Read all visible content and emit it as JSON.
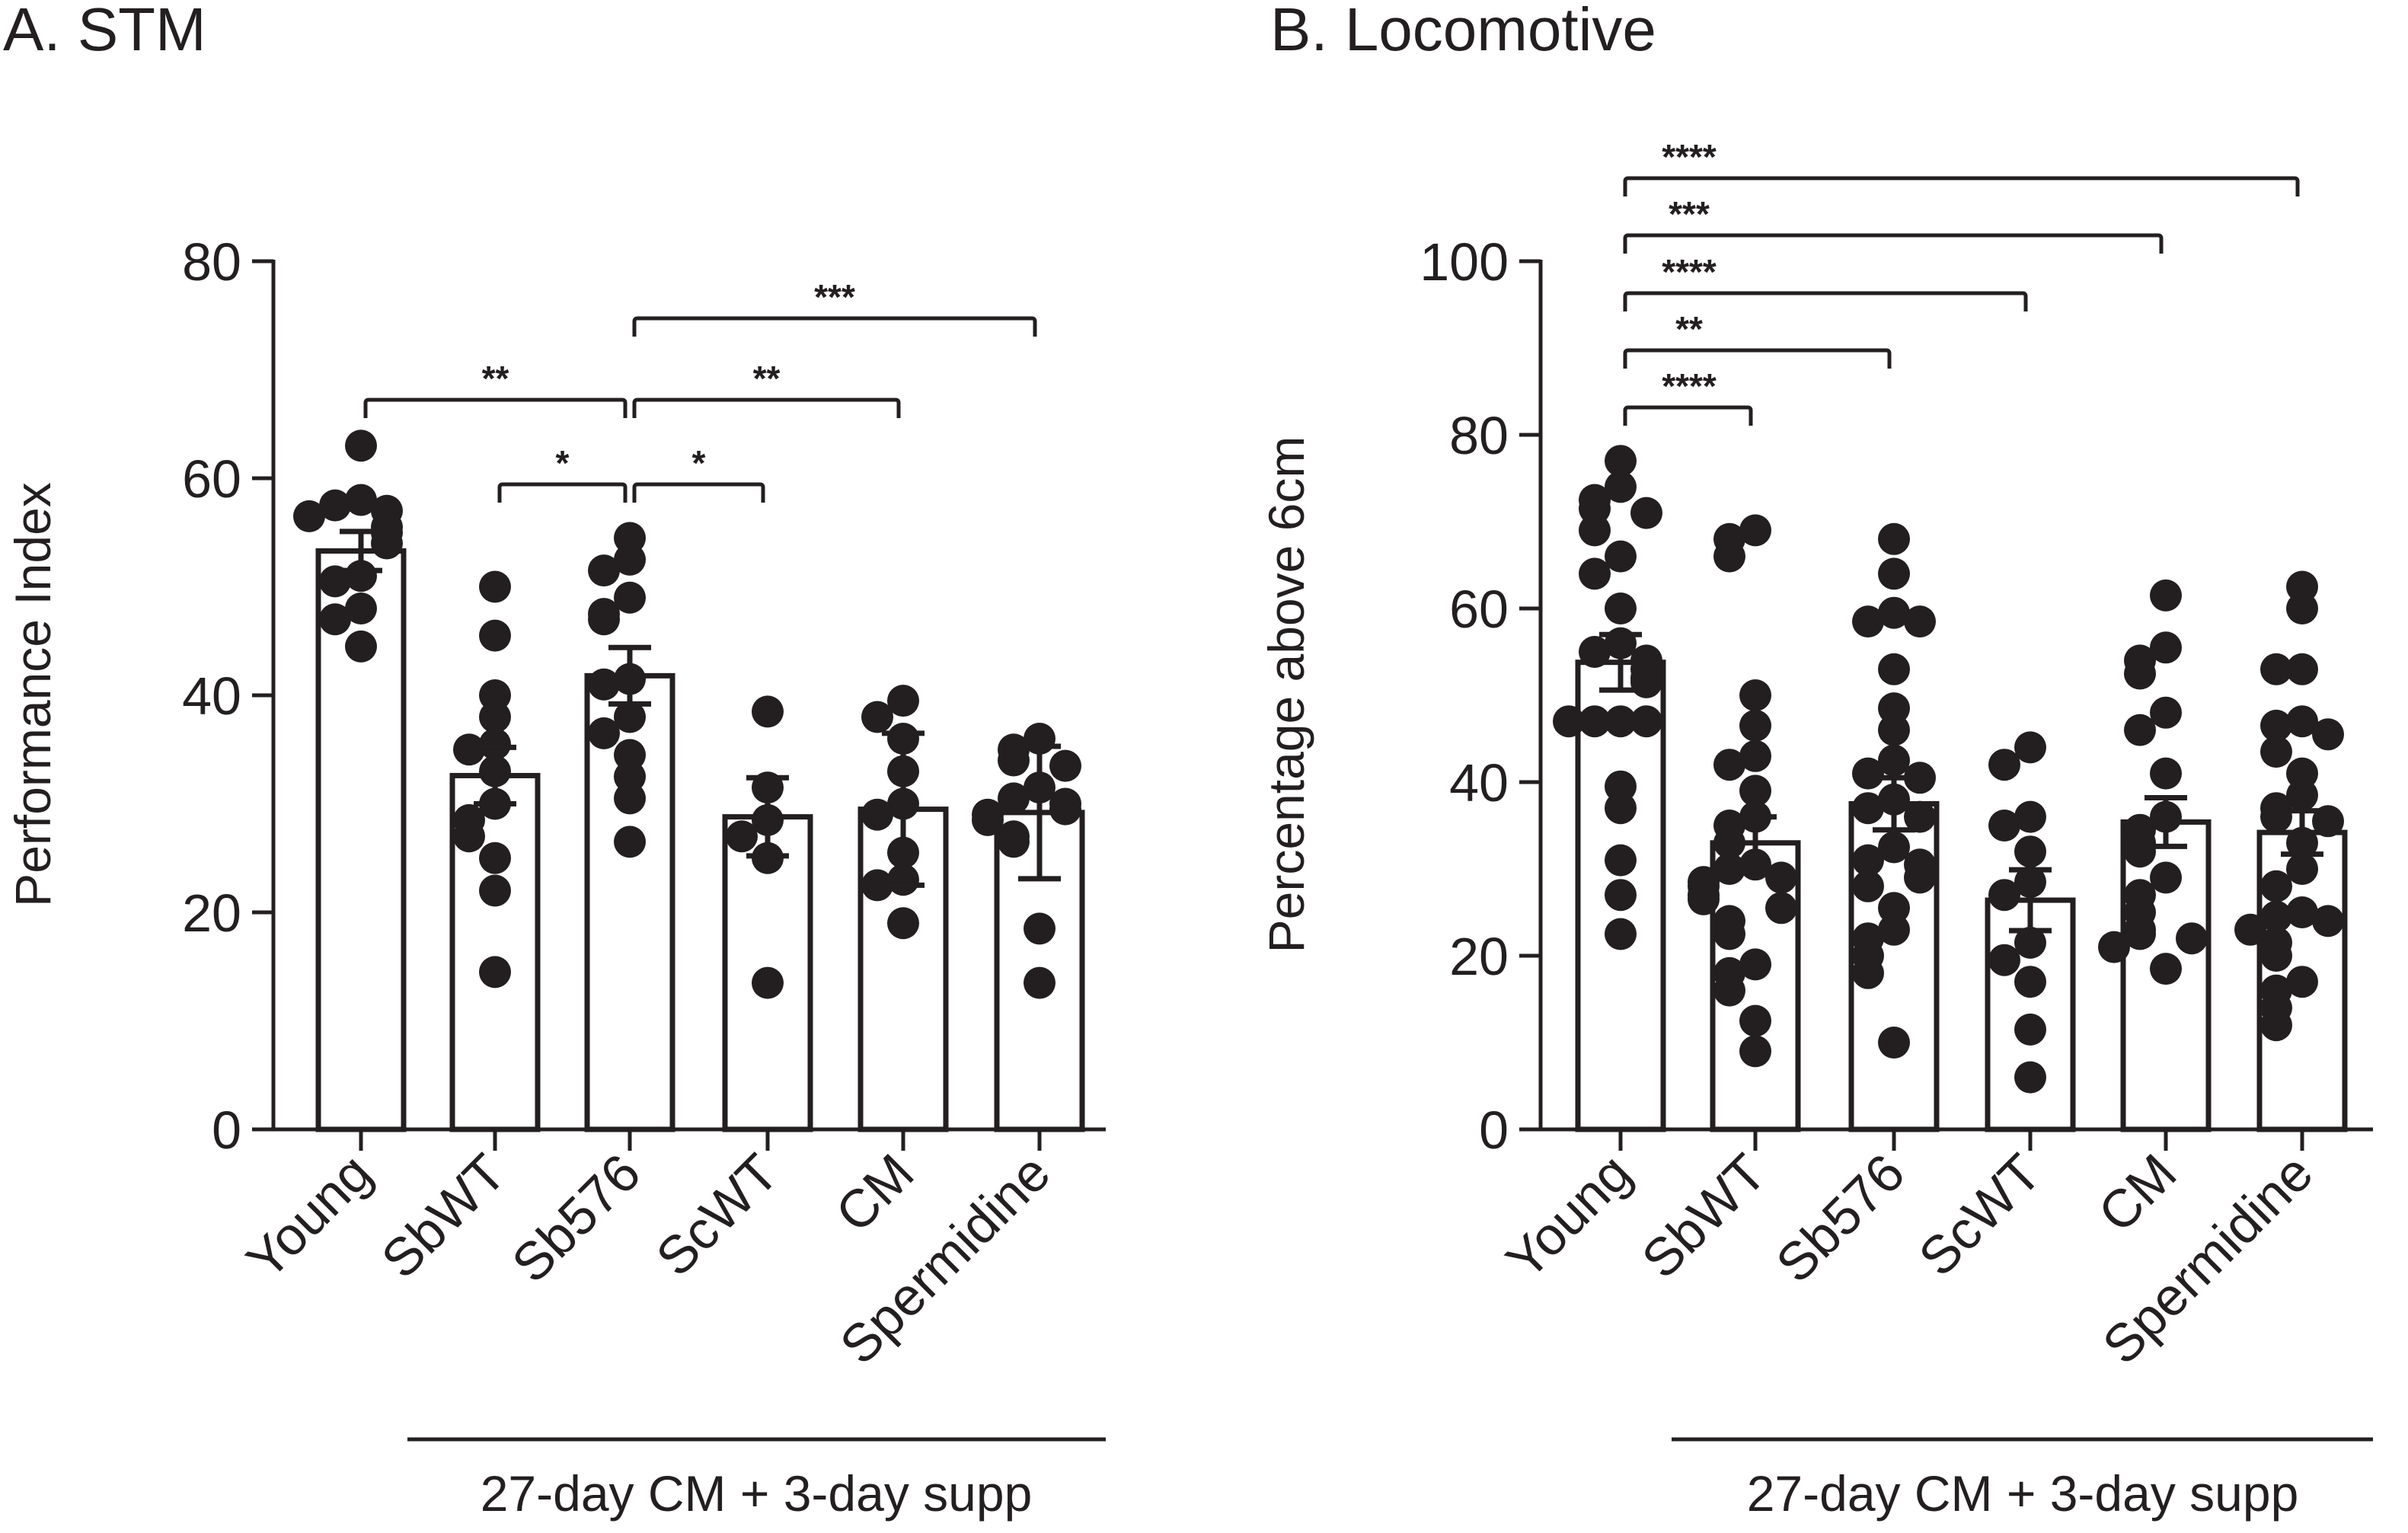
{
  "chart_data": [
    {
      "type": "bar",
      "title": "A. STM",
      "xlabel": "",
      "ylabel": "Performance Index",
      "ylim": [
        0,
        80
      ],
      "yticks": [
        0,
        20,
        40,
        60,
        80
      ],
      "categories": [
        "Young",
        "SbWT",
        "Sb576",
        "ScWT",
        "CM",
        "Spermidine"
      ],
      "values": [
        53.3,
        32.6,
        41.8,
        28.8,
        29.5,
        29.2
      ],
      "errors": [
        1.8,
        2.6,
        2.6,
        3.6,
        7.0,
        6.1
      ],
      "points": [
        [
          63,
          58,
          57.5,
          57,
          56.5,
          55.5,
          55,
          54,
          51,
          50.5,
          48,
          47,
          44.5
        ],
        [
          50,
          45.5,
          40,
          38,
          35.5,
          35,
          33,
          30,
          28.5,
          27,
          25,
          22,
          14.5
        ],
        [
          54.5,
          52.5,
          51.5,
          49,
          47.5,
          47,
          41.5,
          41,
          38,
          36.5,
          34.5,
          32.5,
          30.5,
          26.5
        ],
        [
          38.5,
          31.5,
          28.5,
          27,
          25,
          13.5
        ],
        [
          39.5,
          38,
          36,
          33,
          30,
          29,
          25.5,
          23,
          22.5,
          19
        ],
        [
          36,
          35,
          34,
          33.5,
          31.5,
          30.5,
          30,
          29.5,
          29,
          28.5,
          27,
          26.5,
          18.5,
          13.5
        ]
      ],
      "comparisons": [
        {
          "from": "Young",
          "to": "Sb576",
          "label": "**"
        },
        {
          "from": "SbWT",
          "to": "Sb576",
          "label": "*"
        },
        {
          "from": "Sb576",
          "to": "ScWT",
          "label": "*"
        },
        {
          "from": "Sb576",
          "to": "CM",
          "label": "**"
        },
        {
          "from": "Sb576",
          "to": "Spermidine",
          "label": "***"
        }
      ],
      "group_label": "27-day CM + 3-day supp",
      "grid": false
    },
    {
      "type": "bar",
      "title": "B. Locomotive",
      "xlabel": "",
      "ylabel": "Percentage above 6cm",
      "ylim": [
        0,
        100
      ],
      "yticks": [
        0,
        20,
        40,
        60,
        80,
        100
      ],
      "categories": [
        "Young",
        "SbWT",
        "Sb576",
        "ScWT",
        "CM",
        "Spermidine"
      ],
      "values": [
        53.8,
        33.0,
        37.5,
        26.4,
        35.4,
        34.2
      ],
      "errors": [
        3.2,
        3.0,
        3.0,
        3.5,
        2.8,
        2.5
      ],
      "points": [
        [
          77,
          74,
          72.5,
          71.5,
          71,
          69,
          66,
          64,
          60,
          56,
          55,
          54,
          53,
          52,
          51.5,
          47,
          47,
          47,
          47,
          39.5,
          37,
          31,
          27,
          22.5
        ],
        [
          69,
          68,
          66,
          50,
          46.5,
          43,
          42,
          39,
          36,
          35,
          33,
          30.5,
          30,
          29,
          28.5,
          28,
          27,
          26.5,
          25.5,
          24,
          22.5,
          19,
          18,
          16,
          12.5,
          9
        ],
        [
          68,
          64,
          59.5,
          58.5,
          58.5,
          53,
          48.5,
          46,
          42.5,
          41,
          40.5,
          38,
          37,
          36,
          32.5,
          31,
          30.5,
          29,
          28,
          25.5,
          23,
          22,
          20,
          18,
          10
        ],
        [
          44,
          42,
          36,
          35,
          32,
          28.5,
          27,
          21.5,
          19.5,
          17,
          11.5,
          6
        ],
        [
          61.5,
          55.5,
          54,
          52.5,
          48,
          46,
          41,
          36,
          34.5,
          33,
          32,
          29,
          27,
          25,
          23,
          22.5,
          22,
          21,
          18.5
        ],
        [
          62.5,
          60,
          53,
          53,
          47,
          46.5,
          45.5,
          43.5,
          41,
          38.5,
          37,
          36,
          35.5,
          33,
          30,
          28,
          25,
          24.5,
          24,
          23,
          21.5,
          20,
          17,
          16,
          14,
          12
        ]
      ],
      "comparisons": [
        {
          "from": "Young",
          "to": "SbWT",
          "label": "****"
        },
        {
          "from": "Young",
          "to": "Sb576",
          "label": "**"
        },
        {
          "from": "Young",
          "to": "ScWT",
          "label": "****"
        },
        {
          "from": "Young",
          "to": "CM",
          "label": "***"
        },
        {
          "from": "Young",
          "to": "Spermidine",
          "label": "****"
        }
      ],
      "group_label": "27-day CM + 3-day supp",
      "grid": false
    }
  ]
}
